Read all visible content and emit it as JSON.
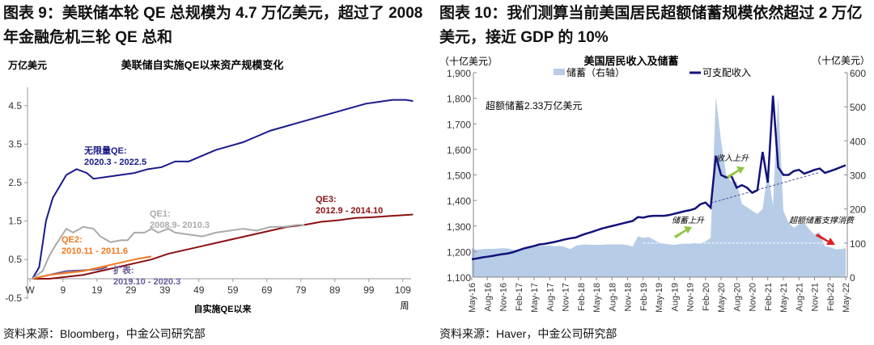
{
  "left": {
    "heading": "图表 9：美联储本轮 QE 总规模为 4.7 万亿美元，超过了 2008 年金融危机三轮 QE 总和",
    "source": "资料来源：Bloomberg，中金公司研究部"
  },
  "right": {
    "heading": "图表 10：我们测算当前美国居民超额储蓄规模依然超过 2 万亿美元，接近 GDP 的 10%",
    "source": "资料来源：Haver，中金公司研究部"
  },
  "chart_data": [
    {
      "type": "line",
      "title": "美联储自实施QE以来资产规模变化",
      "ylabel": "万亿美元",
      "xlabel": "自实施QE以来",
      "xunit": "周",
      "ylim": [
        -0.5,
        5
      ],
      "yticks": [
        "4.5",
        "3.5",
        "2.5",
        "1.5",
        "0.5",
        "-0.5"
      ],
      "ytick_values": [
        4.5,
        3.5,
        2.5,
        1.5,
        0.5,
        -0.5
      ],
      "xticks": [
        "W",
        "9",
        "19",
        "29",
        "39",
        "49",
        "59",
        "69",
        "79",
        "89",
        "99",
        "109"
      ],
      "xtick_values": [
        0,
        9,
        19,
        29,
        39,
        49,
        59,
        69,
        79,
        89,
        99,
        109
      ],
      "series": [
        {
          "name": "无限量QE:",
          "period": "2020.3 - 2022.5",
          "color": "#1a1a8c",
          "x": [
            0,
            2,
            4,
            6,
            8,
            10,
            13,
            16,
            18,
            22,
            26,
            30,
            34,
            38,
            42,
            46,
            50,
            54,
            58,
            62,
            66,
            70,
            74,
            78,
            82,
            86,
            90,
            94,
            98,
            102,
            106,
            110,
            112
          ],
          "y": [
            0,
            0.3,
            1.5,
            2.1,
            2.4,
            2.7,
            2.85,
            2.75,
            2.6,
            2.65,
            2.7,
            2.75,
            2.85,
            2.9,
            3.05,
            3.05,
            3.2,
            3.35,
            3.45,
            3.55,
            3.7,
            3.85,
            3.95,
            4.05,
            4.15,
            4.25,
            4.35,
            4.45,
            4.55,
            4.6,
            4.65,
            4.65,
            4.62
          ]
        },
        {
          "name": "QE1:",
          "period": "2008.9- 2010.3",
          "color": "#aaaaaa",
          "x": [
            0,
            3,
            5,
            7,
            10,
            12,
            15,
            18,
            20,
            23,
            26,
            28,
            30,
            33,
            35,
            37,
            40,
            42,
            46,
            50,
            54,
            58,
            62,
            66,
            70,
            74,
            78,
            80
          ],
          "y": [
            0,
            0.2,
            0.6,
            0.9,
            1.3,
            1.2,
            1.35,
            1.3,
            1.1,
            0.95,
            1.0,
            1.0,
            1.2,
            1.2,
            1.3,
            1.2,
            1.3,
            1.2,
            1.15,
            1.1,
            1.2,
            1.25,
            1.3,
            1.25,
            1.35,
            1.35,
            1.4,
            1.4
          ]
        },
        {
          "name": "QE2:",
          "period": "2010.11 - 2011.6",
          "color": "#f07820",
          "x": [
            0,
            5,
            10,
            15,
            20,
            25,
            30,
            35
          ],
          "y": [
            0,
            0.1,
            0.15,
            0.2,
            0.3,
            0.4,
            0.5,
            0.58
          ]
        },
        {
          "name": "QE3:",
          "period": "2012.9 - 2014.10",
          "color": "#8b1010",
          "x": [
            0,
            5,
            10,
            15,
            20,
            25,
            30,
            35,
            40,
            45,
            50,
            55,
            60,
            65,
            70,
            75,
            80,
            85,
            90,
            95,
            100,
            105,
            112
          ],
          "y": [
            0,
            0,
            0.05,
            0.1,
            0.2,
            0.3,
            0.4,
            0.5,
            0.65,
            0.75,
            0.85,
            0.95,
            1.05,
            1.15,
            1.25,
            1.35,
            1.4,
            1.48,
            1.52,
            1.58,
            1.6,
            1.63,
            1.67
          ]
        },
        {
          "name": "扩表:",
          "period": "2019.10 - 2020.3",
          "color": "#6a5a9a",
          "x": [
            0,
            5,
            10,
            15,
            20,
            22
          ],
          "y": [
            0,
            0.1,
            0.2,
            0.22,
            0.25,
            0.3
          ]
        }
      ]
    },
    {
      "type": "line+area",
      "title": "美国居民收入及储蓄",
      "ylabel_left": "（十亿美元）",
      "ylabel_right": "（十亿美元）",
      "ylim_left": [
        1100,
        1900
      ],
      "ylim_right": [
        0,
        600
      ],
      "yticks_left": [
        "1,900",
        "1,800",
        "1,700",
        "1,600",
        "1,500",
        "1,400",
        "1,300",
        "1,200",
        "1,100"
      ],
      "yticks_right": [
        "600",
        "500",
        "400",
        "300",
        "200",
        "100",
        "0"
      ],
      "xticks": [
        "May-16",
        "Aug-16",
        "Nov-16",
        "Feb-17",
        "May-17",
        "Aug-17",
        "Nov-17",
        "Feb-18",
        "May-18",
        "Aug-18",
        "Nov-18",
        "Feb-19",
        "May-19",
        "Aug-19",
        "Nov-19",
        "Feb-20",
        "May-20",
        "Aug-20",
        "Nov-20",
        "Feb-21",
        "May-21",
        "Aug-21",
        "Nov-21",
        "Feb-22",
        "May-22"
      ],
      "area": {
        "name": "储蓄（右轴）",
        "color": "#b7cce6",
        "values": [
          85,
          80,
          82,
          83,
          83,
          84,
          85,
          84,
          80,
          82,
          85,
          88,
          90,
          92,
          92,
          93,
          90,
          92,
          88,
          82,
          92,
          95,
          96,
          95,
          95,
          95,
          96,
          96,
          96,
          96,
          94,
          90,
          120,
          115,
          118,
          110,
          102,
          98,
          96,
          95,
          97,
          98,
          98,
          100,
          98,
          105,
          115,
          530,
          400,
          300,
          280,
          280,
          215,
          205,
          195,
          185,
          200,
          310,
          210,
          530,
          195,
          160,
          145,
          155,
          160,
          140,
          125,
          132,
          90,
          88,
          82,
          82,
          85
        ]
      },
      "line": {
        "name": "可支配收入",
        "color": "#13127a",
        "values": [
          1170,
          1173,
          1177,
          1180,
          1183,
          1187,
          1190,
          1193,
          1198,
          1205,
          1212,
          1217,
          1222,
          1228,
          1230,
          1234,
          1238,
          1243,
          1248,
          1252,
          1255,
          1263,
          1270,
          1276,
          1283,
          1290,
          1295,
          1300,
          1305,
          1310,
          1315,
          1320,
          1335,
          1333,
          1338,
          1340,
          1340,
          1340,
          1343,
          1348,
          1353,
          1358,
          1362,
          1368,
          1385,
          1392,
          1372,
          1575,
          1500,
          1490,
          1495,
          1450,
          1460,
          1450,
          1430,
          1440,
          1590,
          1470,
          1810,
          1530,
          1500,
          1500,
          1515,
          1520,
          1505,
          1512,
          1520,
          1525,
          1508,
          1515,
          1522,
          1530,
          1538
        ]
      },
      "annotations": [
        "超额储蓄2.33万亿美元",
        "收入上升",
        "储蓄上升",
        "超额储蓄支撑消费"
      ]
    }
  ]
}
